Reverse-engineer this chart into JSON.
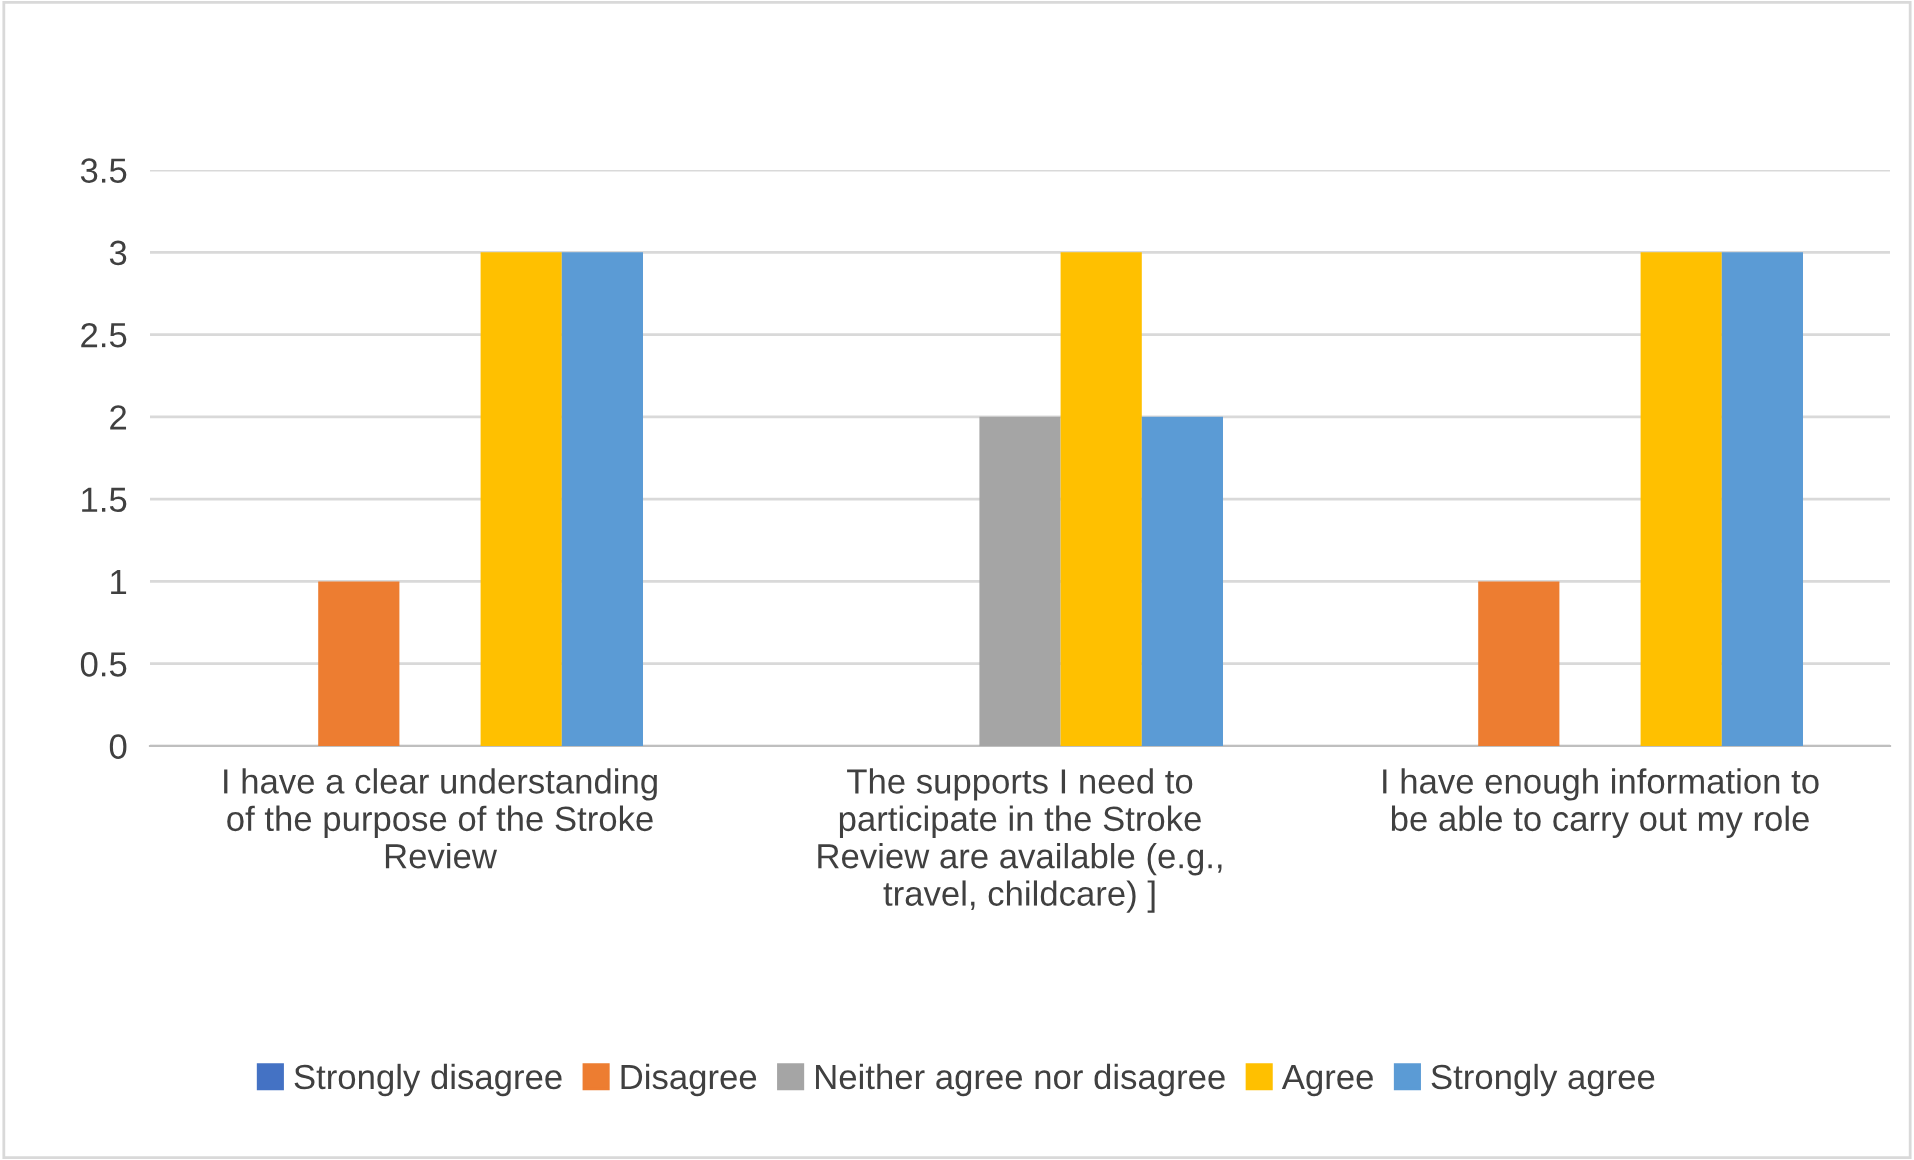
{
  "chart_data": {
    "type": "bar",
    "categories": [
      "I have a clear understanding of the purpose of the Stroke Review",
      "The supports I need to participate in the Stroke Review are available (e.g., travel, childcare) ]",
      "I have enough information to be able to carry out my role"
    ],
    "series": [
      {
        "name": "Strongly disagree",
        "color": "#4472c4",
        "values": [
          0,
          0,
          0
        ]
      },
      {
        "name": "Disagree",
        "color": "#ed7d31",
        "values": [
          1,
          0,
          1
        ]
      },
      {
        "name": "Neither agree nor disagree",
        "color": "#a5a5a5",
        "values": [
          0,
          2,
          0
        ]
      },
      {
        "name": "Agree",
        "color": "#ffc000",
        "values": [
          3,
          3,
          3
        ]
      },
      {
        "name": "Strongly agree",
        "color": "#5b9bd5",
        "values": [
          3,
          2,
          3
        ]
      }
    ],
    "ylim": [
      0,
      3.5
    ],
    "yticks": [
      0,
      0.5,
      1,
      1.5,
      2,
      2.5,
      3,
      3.5
    ],
    "grid": "y",
    "legend": "bottom"
  }
}
